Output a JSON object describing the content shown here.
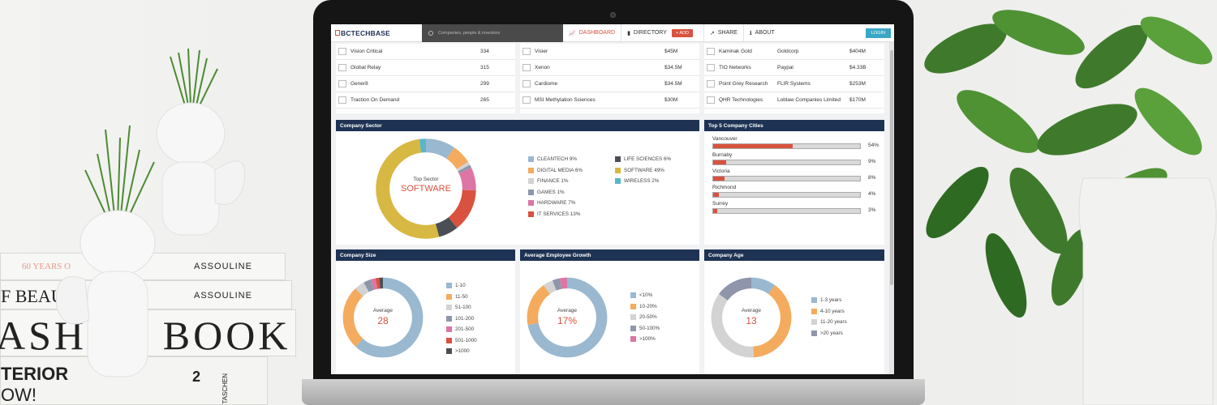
{
  "decor": {
    "book1_title": "ASSOULINE",
    "book1_sub": "60 YEARS O",
    "book2_title": "ASSOULINE",
    "book2_sub": "F BEAU",
    "book3_title": "ASHI N BOOK",
    "book4_title": "TERIOR",
    "book4_sub": "OW!",
    "book4_brand": "TASCHEN",
    "book4_num": "2",
    "colors": {
      "plant": "#3f7a2c",
      "pot": "#f5f5f5"
    }
  },
  "app": {
    "logo": "BCTECHBASE",
    "search_placeholder": "Companies, people & investors",
    "nav": {
      "dashboard": "DASHBOARD",
      "directory": "DIRECTORY",
      "add": "ADD",
      "share": "SHARE",
      "about": "ABOUT",
      "login": "LOGIN"
    },
    "colors": {
      "accent": "#d9523f",
      "navy": "#1e3354",
      "teal": "#3aa8c4"
    }
  },
  "employees_list": [
    {
      "name": "Vision Critical",
      "value": "334"
    },
    {
      "name": "Global Relay",
      "value": "315"
    },
    {
      "name": "Gener8",
      "value": "299"
    },
    {
      "name": "Traction On Demand",
      "value": "265"
    }
  ],
  "funding_list": [
    {
      "name": "Visier",
      "value": "$45M"
    },
    {
      "name": "Xenon",
      "value": "$34.5M"
    },
    {
      "name": "Cardiome",
      "value": "$34.5M"
    },
    {
      "name": "MSI Methylation Sciences",
      "value": "$30M"
    }
  ],
  "acquisitions_list": [
    {
      "name": "Kaminak Gold",
      "acquirer": "Goldcorp",
      "value": "$404M"
    },
    {
      "name": "TIO Networks",
      "acquirer": "Paypal",
      "value": "$4.33B"
    },
    {
      "name": "Point Grey Research",
      "acquirer": "FLIR Systems",
      "value": "$253M"
    },
    {
      "name": "QHR Technologies",
      "acquirer": "Loblaw Companies Limited",
      "value": "$170M"
    }
  ],
  "sector": {
    "title": "Company Sector",
    "center_caption": "Top Sector",
    "center_value": "SOFTWARE",
    "legend_left": [
      {
        "label": "CLEANTECH 9%",
        "color": "#9ab8cf"
      },
      {
        "label": "DIGITAL MEDIA 6%",
        "color": "#f4ab5e"
      },
      {
        "label": "FINANCE 1%",
        "color": "#d3d3d3"
      },
      {
        "label": "GAMES 1%",
        "color": "#8f96ab"
      },
      {
        "label": "HARDWARE 7%",
        "color": "#dd76a4"
      },
      {
        "label": "IT SERVICES 13%",
        "color": "#d9523f"
      }
    ],
    "legend_right": [
      {
        "label": "LIFE SCIENCES 6%",
        "color": "#4a4f55"
      },
      {
        "label": "SOFTWARE 49%",
        "color": "#d7b842"
      },
      {
        "label": "WIRELESS 2%",
        "color": "#59b7c9"
      }
    ],
    "slices": [
      {
        "name": "CLEANTECH",
        "value": 9,
        "color": "#9ab8cf"
      },
      {
        "name": "DIGITAL MEDIA",
        "value": 6,
        "color": "#f4ab5e"
      },
      {
        "name": "FINANCE",
        "value": 1,
        "color": "#d3d3d3"
      },
      {
        "name": "GAMES",
        "value": 1,
        "color": "#8f96ab"
      },
      {
        "name": "HARDWARE",
        "value": 7,
        "color": "#dd76a4"
      },
      {
        "name": "IT SERVICES",
        "value": 13,
        "color": "#d9523f"
      },
      {
        "name": "LIFE SCIENCES",
        "value": 6,
        "color": "#4a4f55"
      },
      {
        "name": "SOFTWARE",
        "value": 49,
        "color": "#d7b842"
      },
      {
        "name": "WIRELESS",
        "value": 2,
        "color": "#59b7c9"
      }
    ]
  },
  "cities": {
    "title": "Top 5 Company Cities",
    "items": [
      {
        "name": "Vancouver",
        "pct": "54%",
        "value": 54
      },
      {
        "name": "Burnaby",
        "pct": "9%",
        "value": 9
      },
      {
        "name": "Victoria",
        "pct": "8%",
        "value": 8
      },
      {
        "name": "Richmond",
        "pct": "4%",
        "value": 4
      },
      {
        "name": "Surrey",
        "pct": "3%",
        "value": 3
      }
    ]
  },
  "size": {
    "title": "Company Size",
    "caption": "Average",
    "value": "28",
    "legend": [
      {
        "label": "1-10",
        "color": "#9ab8cf"
      },
      {
        "label": "11-50",
        "color": "#f4ab5e"
      },
      {
        "label": "51-100",
        "color": "#d3d3d3"
      },
      {
        "label": "101-200",
        "color": "#8f96ab"
      },
      {
        "label": "201-500",
        "color": "#dd76a4"
      },
      {
        "label": "501-1000",
        "color": "#d9523f"
      },
      {
        "label": ">1000",
        "color": "#4a4f55"
      }
    ],
    "slices": [
      {
        "value": 62,
        "color": "#9ab8cf"
      },
      {
        "value": 26,
        "color": "#f4ab5e"
      },
      {
        "value": 4,
        "color": "#d3d3d3"
      },
      {
        "value": 3,
        "color": "#8f96ab"
      },
      {
        "value": 2,
        "color": "#dd76a4"
      },
      {
        "value": 1.5,
        "color": "#d9523f"
      },
      {
        "value": 1.5,
        "color": "#4a4f55"
      }
    ]
  },
  "growth": {
    "title": "Average Employee Growth",
    "caption": "Average",
    "value": "17%",
    "legend": [
      {
        "label": "<10%",
        "color": "#9ab8cf"
      },
      {
        "label": "10-20%",
        "color": "#f4ab5e"
      },
      {
        "label": "20-50%",
        "color": "#d3d3d3"
      },
      {
        "label": "50-100%",
        "color": "#8f96ab"
      },
      {
        "label": ">100%",
        "color": "#dd76a4"
      }
    ],
    "slices": [
      {
        "value": 72,
        "color": "#9ab8cf"
      },
      {
        "value": 18,
        "color": "#f4ab5e"
      },
      {
        "value": 4,
        "color": "#d3d3d3"
      },
      {
        "value": 3,
        "color": "#8f96ab"
      },
      {
        "value": 3,
        "color": "#dd76a4"
      }
    ]
  },
  "age": {
    "title": "Company Age",
    "caption": "Average",
    "value": "13",
    "legend": [
      {
        "label": "1-3 years",
        "color": "#9ab8cf"
      },
      {
        "label": "4-10 years",
        "color": "#f4ab5e"
      },
      {
        "label": "11-20 years",
        "color": "#d3d3d3"
      },
      {
        "label": ">20 years",
        "color": "#8f96ab"
      }
    ],
    "slices": [
      {
        "value": 10,
        "color": "#9ab8cf"
      },
      {
        "value": 39,
        "color": "#f4ab5e"
      },
      {
        "value": 36,
        "color": "#d3d3d3"
      },
      {
        "value": 15,
        "color": "#8f96ab"
      }
    ]
  }
}
